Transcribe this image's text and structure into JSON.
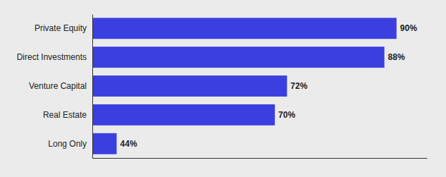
{
  "chart_data": {
    "type": "bar",
    "orientation": "horizontal",
    "categories": [
      "Private Equity",
      "Direct Investments",
      "Venture Capital",
      "Real Estate",
      "Long Only"
    ],
    "values": [
      90,
      88,
      72,
      70,
      44
    ],
    "value_labels": [
      "90%",
      "88%",
      "72%",
      "70%",
      "44%"
    ],
    "color": "#3b3fe0",
    "xlim": [
      40,
      95
    ],
    "tick_labels": "y",
    "data_labels": true,
    "grid": false
  }
}
